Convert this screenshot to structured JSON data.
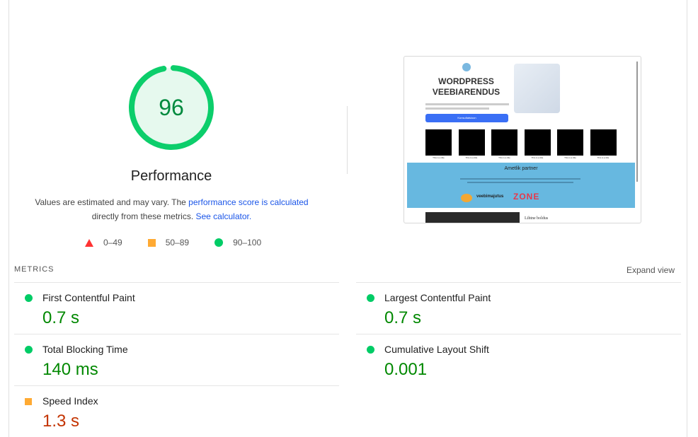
{
  "score": {
    "value": 96,
    "label": "Performance",
    "color": "#0cce6b"
  },
  "description": {
    "text1": "Values are estimated and may vary. The ",
    "link1": "performance score is calculated",
    "text2": " directly from these metrics. ",
    "link2": "See calculator."
  },
  "legend": [
    {
      "icon": "triangle-icon",
      "range": "0–49"
    },
    {
      "icon": "square-icon",
      "range": "50–89"
    },
    {
      "icon": "circle-icon",
      "range": "90–100"
    }
  ],
  "screenshot": {
    "title_line1": "WORDPRESS",
    "title_line2": "VEEBIARENDUS",
    "button": "Konsultatsioon",
    "card_title": "This is a title",
    "partner_heading": "Ametlik partner",
    "logo1": "veebimajutus",
    "logo2": "ZONE",
    "bottom_heading": "Lihtne boldus"
  },
  "metrics": {
    "heading": "METRICS",
    "expand": "Expand view",
    "items": [
      {
        "name": "First Contentful Paint",
        "value": "0.7 s",
        "status": "pass"
      },
      {
        "name": "Largest Contentful Paint",
        "value": "0.7 s",
        "status": "pass"
      },
      {
        "name": "Total Blocking Time",
        "value": "140 ms",
        "status": "pass"
      },
      {
        "name": "Cumulative Layout Shift",
        "value": "0.001",
        "status": "pass"
      },
      {
        "name": "Speed Index",
        "value": "1.3 s",
        "status": "average"
      }
    ]
  }
}
